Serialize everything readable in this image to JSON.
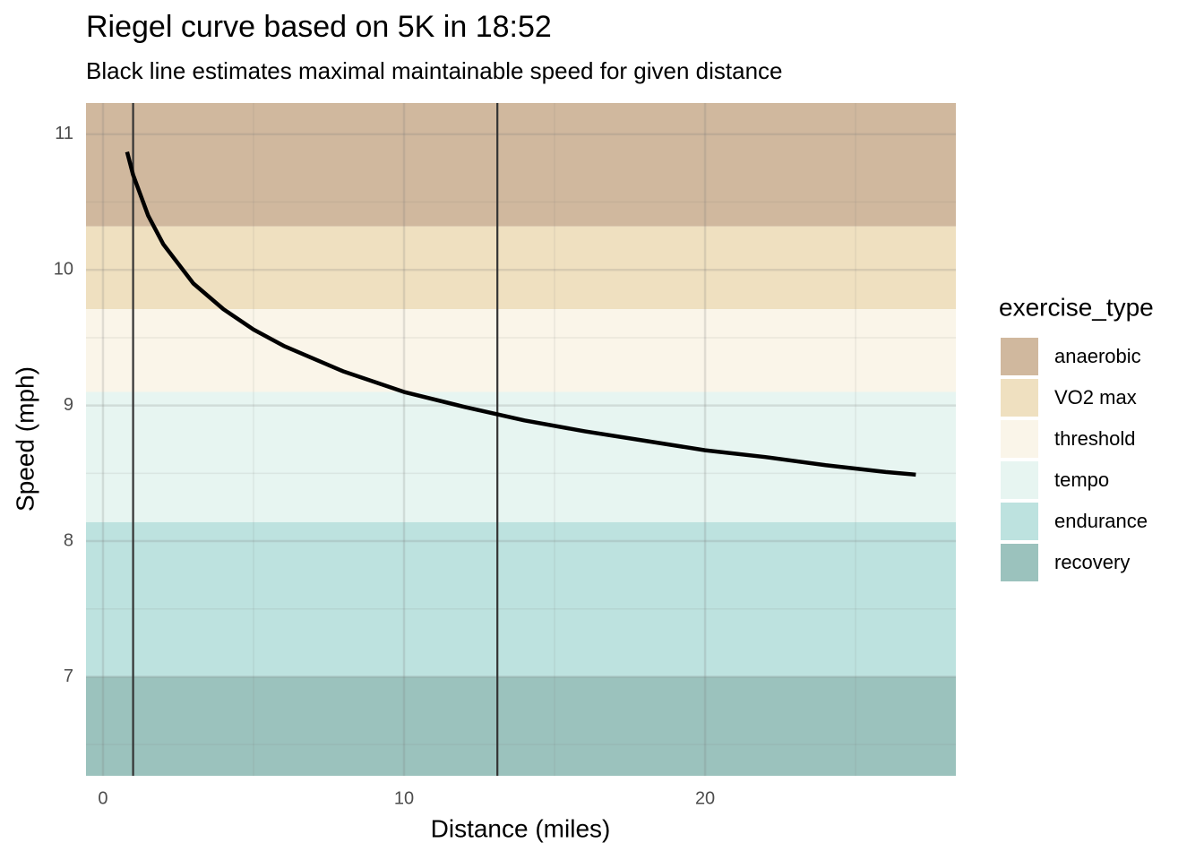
{
  "chart_data": {
    "type": "line",
    "title": "Riegel curve based on 5K in 18:52",
    "subtitle": "Black line estimates maximal maintainable speed for given distance",
    "x_label": "Distance (miles)",
    "y_label": "Speed (mph)",
    "x": [
      0.8,
      1,
      1.5,
      2,
      3,
      4,
      5,
      6,
      8,
      10,
      12,
      14,
      16,
      18,
      20,
      22,
      24,
      26,
      27
    ],
    "values": [
      10.87,
      10.7,
      10.4,
      10.19,
      9.9,
      9.71,
      9.56,
      9.44,
      9.25,
      9.1,
      8.99,
      8.89,
      8.81,
      8.74,
      8.67,
      8.62,
      8.56,
      8.51,
      8.49
    ],
    "color": "#000000",
    "vlines": [
      1,
      13.1
    ],
    "vline_color": "#333333",
    "legend_title": "exercise_type",
    "legend_position": "right",
    "bands": [
      {
        "name": "anaerobic",
        "color": "#d0b89e",
        "range": [
          10.32,
          11.23
        ]
      },
      {
        "name": "VO2 max",
        "color": "#efe0c0",
        "range": [
          9.71,
          10.32
        ]
      },
      {
        "name": "threshold",
        "color": "#faf5e9",
        "range": [
          9.1,
          9.71
        ]
      },
      {
        "name": "tempo",
        "color": "#e7f5f1",
        "range": [
          8.14,
          9.1
        ]
      },
      {
        "name": "endurance",
        "color": "#bde2df",
        "range": [
          7.0,
          8.14
        ]
      },
      {
        "name": "recovery",
        "color": "#9bc2bd",
        "range": [
          6.27,
          7.0
        ]
      }
    ],
    "xlim": [
      -0.565,
      28.33
    ],
    "ylim": [
      6.27,
      11.23
    ],
    "xticks": [
      0,
      10,
      20
    ],
    "yticks": [
      7,
      8,
      9,
      10,
      11
    ],
    "x_minor_ticks": [
      5,
      15,
      25
    ],
    "y_minor_ticks": [
      6.5,
      7.5,
      8.5,
      9.5,
      10.5
    ],
    "grid": true
  }
}
